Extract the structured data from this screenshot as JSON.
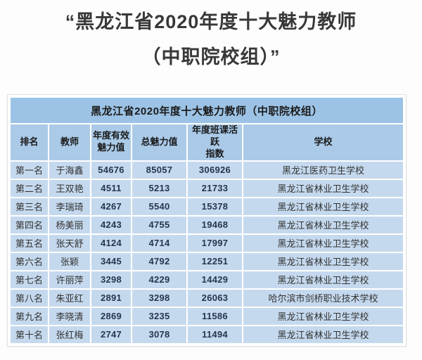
{
  "page": {
    "title_line1": "“黑龙江省2020年度十大魅力教师",
    "title_line2": "（中职院校组）”"
  },
  "table": {
    "caption": "黑龙江省2020年度十大魅力教师（中职院校组）",
    "columns": [
      "排名",
      "教师",
      "年度有效\n魅力值",
      "总魅力值",
      "年度班课活跃\n指数",
      "学校"
    ],
    "rows": [
      [
        "第一名",
        "于海鑫",
        "54676",
        "85057",
        "306926",
        "黑龙江医药卫生学校"
      ],
      [
        "第二名",
        "王双艳",
        "4511",
        "5213",
        "21733",
        "黑龙江省林业卫生学校"
      ],
      [
        "第三名",
        "李瑞琦",
        "4267",
        "5540",
        "15378",
        "黑龙江省林业卫生学校"
      ],
      [
        "第四名",
        "杨美丽",
        "4243",
        "4755",
        "19468",
        "黑龙江省林业卫生学校"
      ],
      [
        "第五名",
        "张天舒",
        "4124",
        "4714",
        "17997",
        "黑龙江省林业卫生学校"
      ],
      [
        "第六名",
        "张颖",
        "3445",
        "4792",
        "12251",
        "黑龙江省林业卫生学校"
      ],
      [
        "第七名",
        "许丽萍",
        "3298",
        "4229",
        "14429",
        "黑龙江省林业卫生学校"
      ],
      [
        "第八名",
        "朱亚红",
        "2891",
        "3298",
        "26063",
        "哈尔滨市剑桥职业技术学校"
      ],
      [
        "第九名",
        "李晓清",
        "2869",
        "3235",
        "11586",
        "黑龙江省林业卫生学校"
      ],
      [
        "第十名",
        "张红梅",
        "2747",
        "3078",
        "11494",
        "黑龙江省林业卫生学校"
      ]
    ],
    "colors": {
      "caption_bg": "#9cc3e5",
      "header_bg": "#aacae8",
      "row_bg": "#c5d9ee",
      "grid": "#ffffff",
      "text": "#333333"
    }
  }
}
